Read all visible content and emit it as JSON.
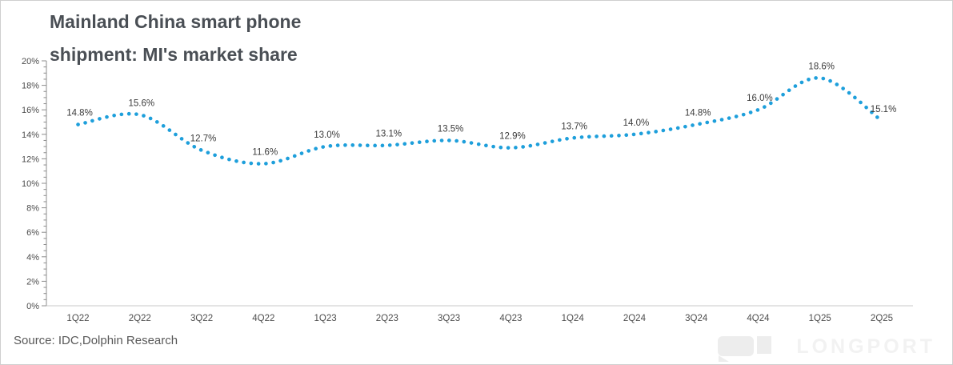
{
  "title": {
    "line1": "Mainland China smart phone",
    "line2": "shipment: MI's market share"
  },
  "source_note": "Source: IDC,Dolphin Research",
  "watermark": {
    "wordmark": "LONGPORT"
  },
  "colors": {
    "accent_dot": "#1E9FDB",
    "title_text": "#4a4f55",
    "axis_text": "#4d4d4d",
    "data_label_text": "#3a3a3a",
    "y_axis_line": "#8c8c8c",
    "x_axis_line": "#c9c9c9",
    "frame_border": "#cfcfcf",
    "watermark_gray": "#ededed"
  },
  "chart_data": {
    "type": "line",
    "line_style": "dotted",
    "title": "Mainland China smart phone shipment: MI's market share",
    "categories": [
      "1Q22",
      "2Q22",
      "3Q22",
      "4Q22",
      "1Q23",
      "2Q23",
      "3Q23",
      "4Q23",
      "1Q24",
      "2Q24",
      "3Q24",
      "4Q24",
      "1Q25",
      "2Q25"
    ],
    "values": [
      14.8,
      15.6,
      12.7,
      11.6,
      13.0,
      13.1,
      13.5,
      12.9,
      13.7,
      14.0,
      14.8,
      16.0,
      18.6,
      15.1
    ],
    "point_labels": [
      "14.8%",
      "15.6%",
      "12.7%",
      "11.6%",
      "13.0%",
      "13.1%",
      "13.5%",
      "12.9%",
      "13.7%",
      "14.0%",
      "14.8%",
      "16.0%",
      "18.6%",
      "15.1%"
    ],
    "ylim": [
      0,
      20
    ],
    "ytick_step": 2,
    "ytick_minor_step": 0.5,
    "ytick_labels": [
      "0%",
      "2%",
      "4%",
      "6%",
      "8%",
      "10%",
      "12%",
      "14%",
      "16%",
      "18%",
      "20%"
    ],
    "grid": false,
    "legend": "none"
  }
}
